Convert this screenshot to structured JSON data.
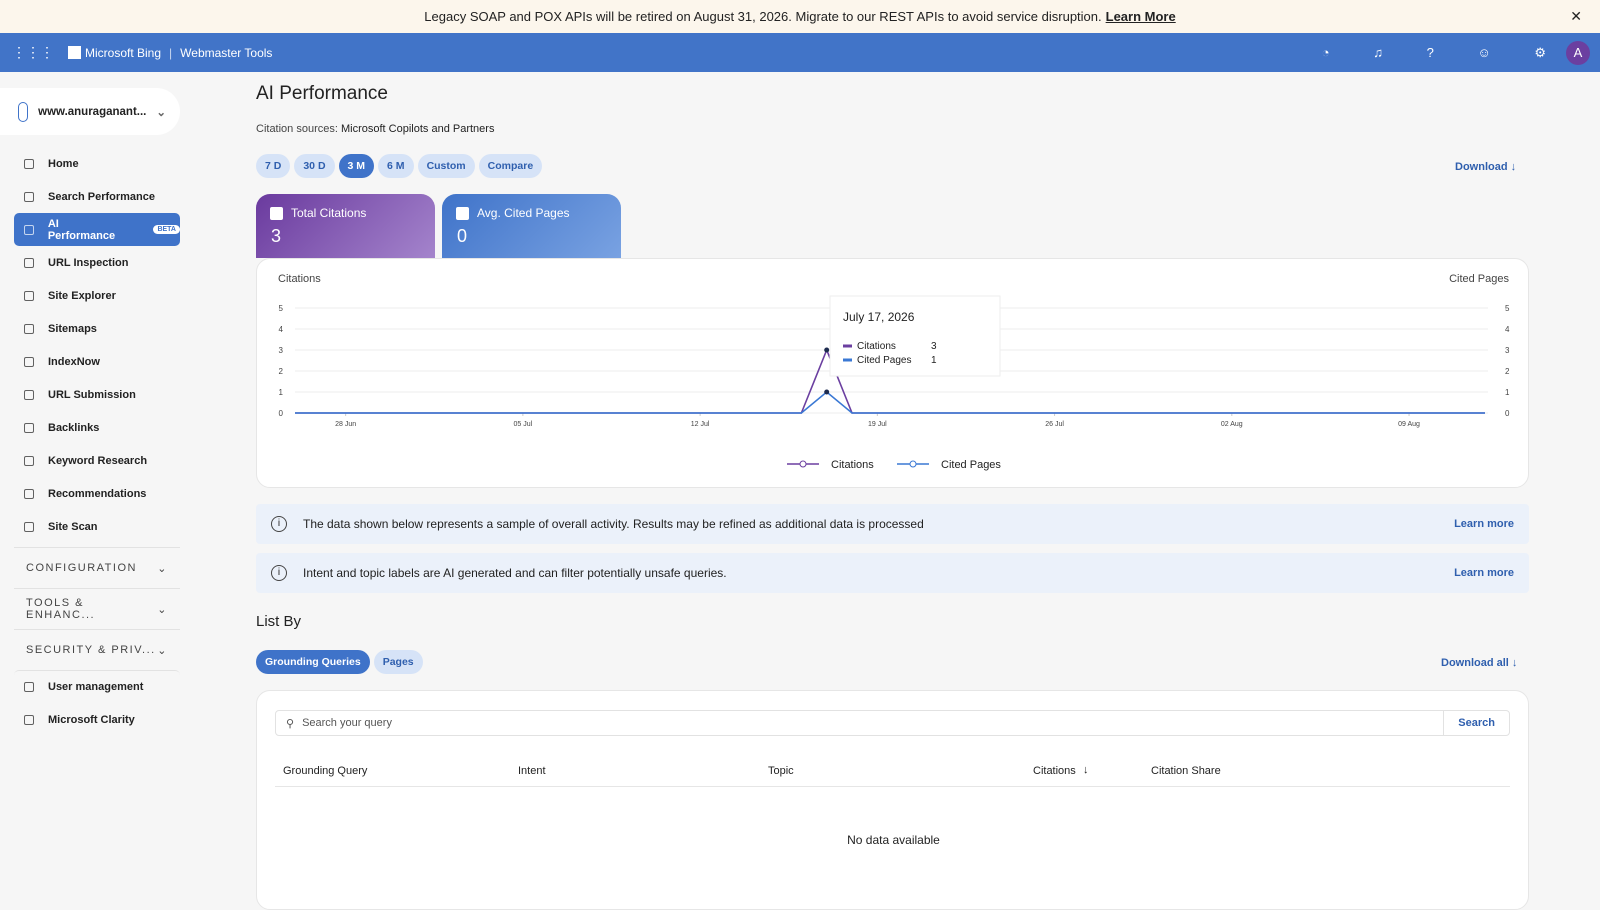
{
  "banner": {
    "text": "Legacy SOAP and POX APIs will be retired on August 31, 2026. Migrate to our REST APIs to avoid service disruption.",
    "link": "Learn More"
  },
  "topbar": {
    "brand": "Microsoft Bing",
    "product": "Webmaster Tools",
    "avatar": "A"
  },
  "sidebar": {
    "site": "www.anuraganant...",
    "items": [
      "Home",
      "Search Performance",
      "AI Performance",
      "URL Inspection",
      "Site Explorer",
      "Sitemaps",
      "IndexNow",
      "URL Submission",
      "Backlinks",
      "Keyword Research",
      "Recommendations",
      "Site Scan"
    ],
    "badge": "BETA",
    "groups": [
      "CONFIGURATION",
      "TOOLS & ENHANC...",
      "SECURITY & PRIV..."
    ],
    "footer_items": [
      "User management",
      "Microsoft Clarity"
    ]
  },
  "header": {
    "title": "AI Performance",
    "sources_label": "Citation sources:",
    "sources": "Microsoft Copilots and Partners",
    "download": "Download"
  },
  "ranges": [
    "7 D",
    "30 D",
    "3 M",
    "6 M",
    "Custom",
    "Compare"
  ],
  "cards": [
    {
      "label": "Total Citations",
      "value": "3"
    },
    {
      "label": "Avg. Cited Pages",
      "value": "0"
    }
  ],
  "chart_data": {
    "type": "line",
    "y_label": "Citations",
    "y2_label": "Cited Pages",
    "x": [
      "26 Jun",
      "16 Jul",
      "17 Jul",
      "18 Jul",
      "12 Aug"
    ],
    "xticks": [
      "28 Jun",
      "05 Jul",
      "12 Jul",
      "19 Jul",
      "26 Jul",
      "02 Aug",
      "09 Aug"
    ],
    "ylim": [
      0,
      5
    ],
    "yticks": [
      0,
      1,
      2,
      3,
      4,
      5
    ],
    "y2lim": [
      0,
      5
    ],
    "y2ticks": [
      0,
      1,
      2,
      3,
      4,
      5
    ],
    "grid": true,
    "series": [
      {
        "name": "Citations",
        "color": "#6b3fa0",
        "values": [
          0,
          0,
          3,
          0,
          0
        ]
      },
      {
        "name": "Cited Pages",
        "color": "#3a78d4",
        "values": [
          0,
          0,
          1,
          0,
          0
        ],
        "axis": "y2"
      }
    ],
    "tooltip": {
      "title": "July 17, 2026"
    }
  },
  "notices": [
    {
      "text": "The data shown below represents a sample of overall activity. Results may be refined as additional data is processed",
      "link": "Learn more"
    },
    {
      "text": "Intent and topic labels are AI generated and can filter potentially unsafe queries.",
      "link": "Learn more"
    }
  ],
  "list_by": {
    "title": "List By",
    "tabs": [
      "Grounding Queries",
      "Pages"
    ],
    "download": "Download all"
  },
  "table": {
    "search_placeholder": "Search your query",
    "search_button": "Search",
    "columns": [
      "Grounding Query",
      "Intent",
      "Topic",
      "Citations",
      "Citation Share"
    ],
    "sort_icon": "↓",
    "empty": "No data available"
  }
}
